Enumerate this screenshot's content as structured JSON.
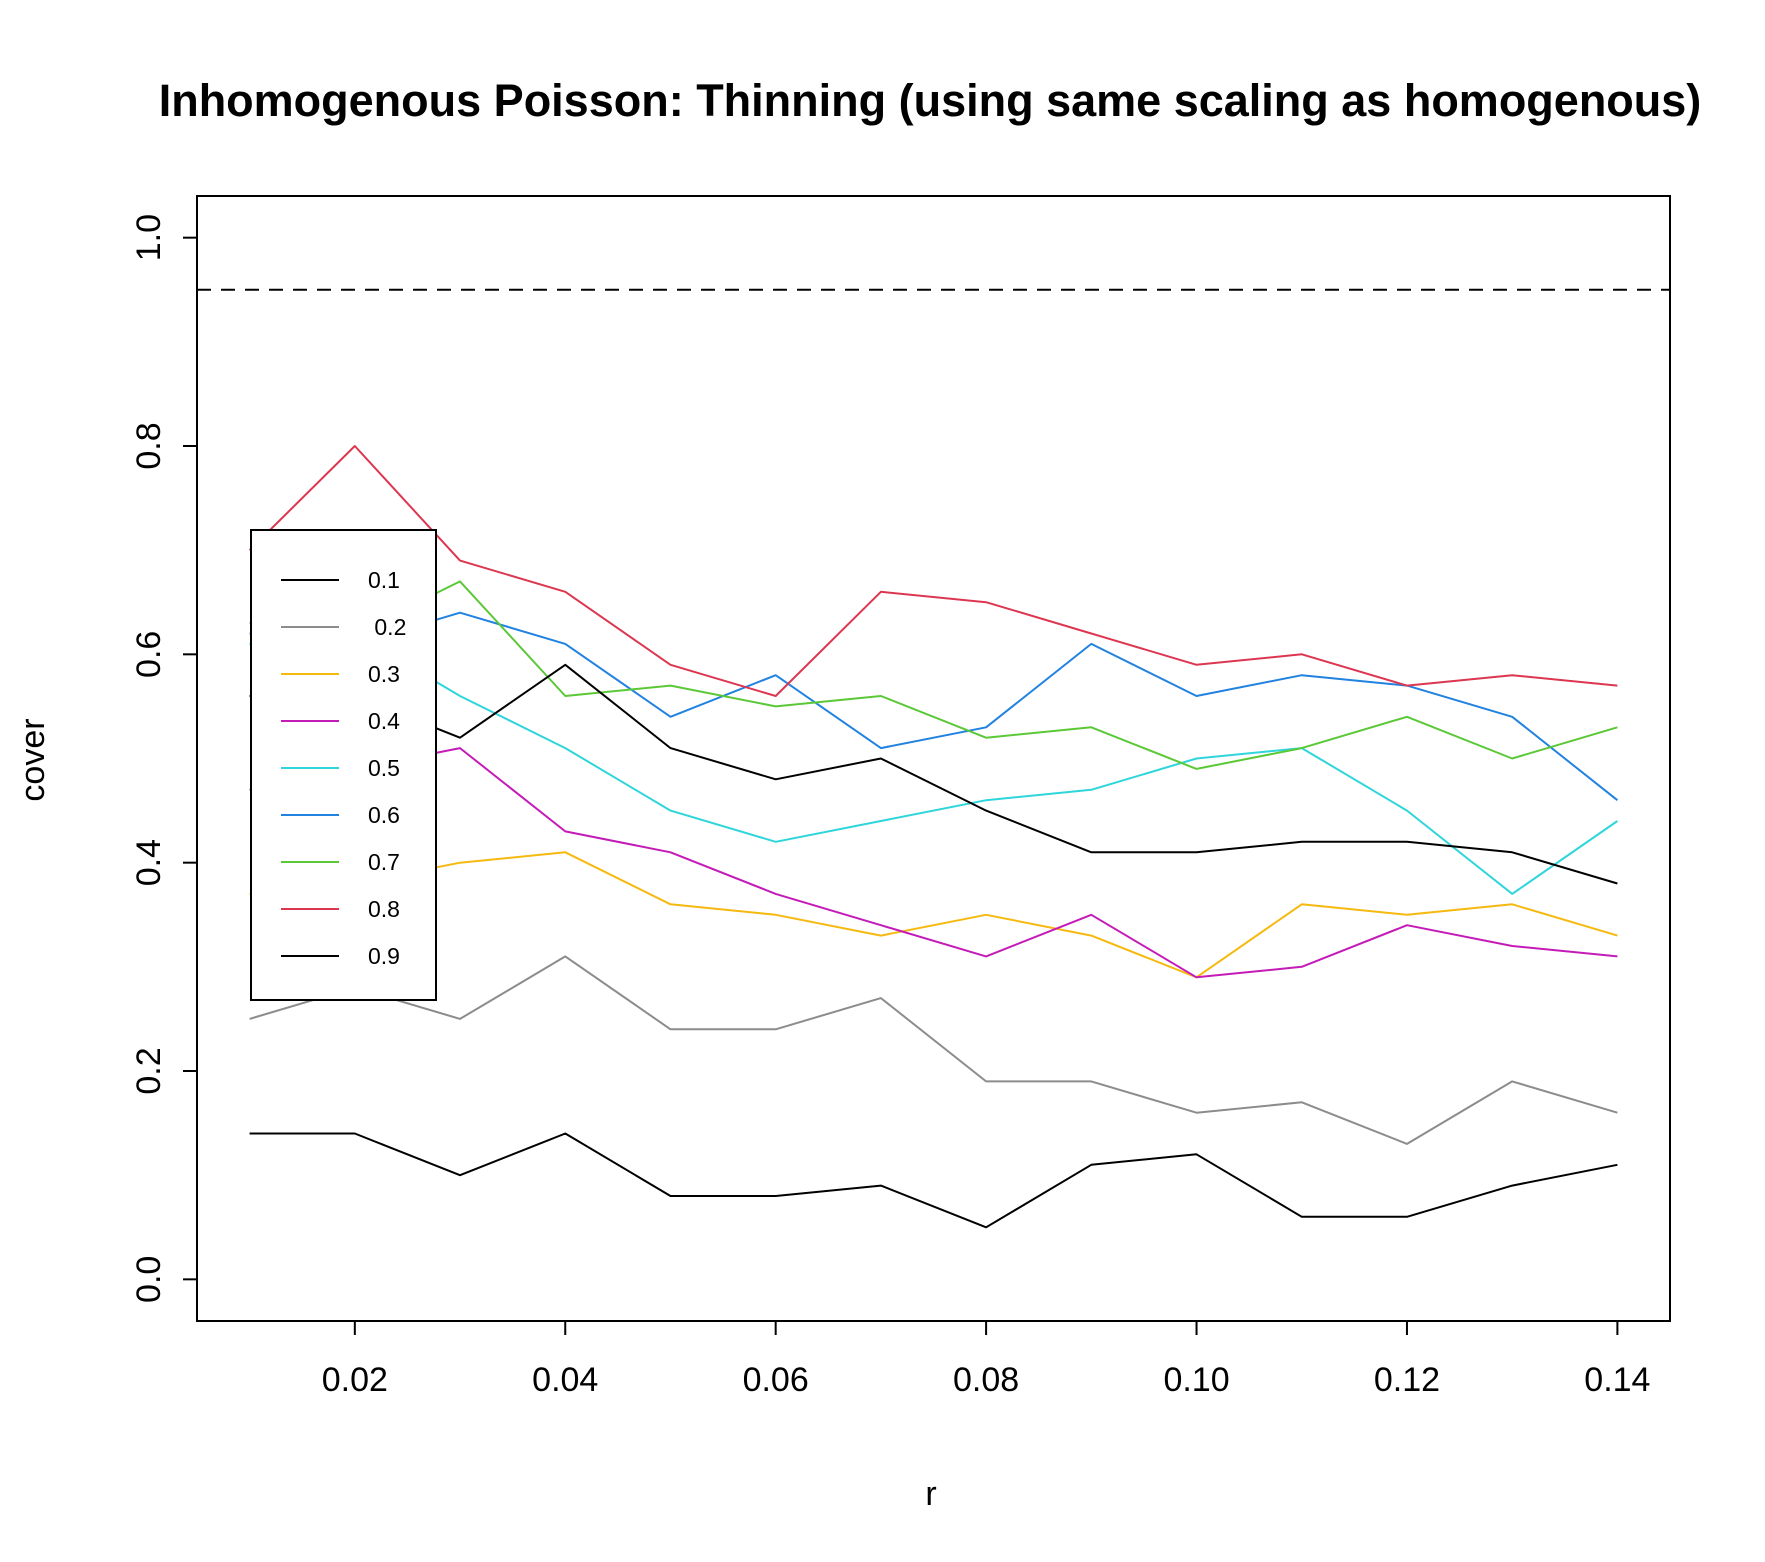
{
  "chart_data": {
    "type": "line",
    "title": "Inhomogenous Poisson: Thinning (using same scaling as homogenous)",
    "xlabel": "r",
    "ylabel": "cover",
    "x": [
      0.01,
      0.02,
      0.03,
      0.04,
      0.05,
      0.06,
      0.07,
      0.08,
      0.09,
      0.1,
      0.11,
      0.12,
      0.13,
      0.14
    ],
    "xlim": [
      0.005,
      0.145
    ],
    "ylim": [
      -0.04,
      1.04
    ],
    "xticks": [
      "0.02",
      "0.04",
      "0.06",
      "0.08",
      "0.10",
      "0.12",
      "0.14"
    ],
    "xtick_values": [
      0.02,
      0.04,
      0.06,
      0.08,
      0.1,
      0.12,
      0.14
    ],
    "yticks": [
      "0.0",
      "0.2",
      "0.4",
      "0.6",
      "0.8",
      "1.0"
    ],
    "ytick_values": [
      0.0,
      0.2,
      0.4,
      0.6,
      0.8,
      1.0
    ],
    "reference_line": {
      "y": 0.95,
      "style": "dashed",
      "color": "#000000"
    },
    "grid": false,
    "legend_position": "left",
    "series": [
      {
        "name": "0.1",
        "color": "#000000",
        "values": [
          0.14,
          0.14,
          0.1,
          0.14,
          0.08,
          0.08,
          0.09,
          0.05,
          0.11,
          0.12,
          0.06,
          0.06,
          0.09,
          0.11
        ]
      },
      {
        "name": " 0.2",
        "color": "#8C8C8C",
        "values": [
          0.25,
          0.28,
          0.25,
          0.31,
          0.24,
          0.24,
          0.27,
          0.19,
          0.19,
          0.16,
          0.17,
          0.13,
          0.19,
          0.16
        ]
      },
      {
        "name": "0.3",
        "color": "#F5B90F",
        "values": [
          0.37,
          0.38,
          0.4,
          0.41,
          0.36,
          0.35,
          0.33,
          0.35,
          0.33,
          0.29,
          0.36,
          0.35,
          0.36,
          0.33
        ]
      },
      {
        "name": "0.4",
        "color": "#C41BB8",
        "values": [
          0.47,
          0.49,
          0.51,
          0.43,
          0.41,
          0.37,
          0.34,
          0.31,
          0.35,
          0.29,
          0.3,
          0.34,
          0.32,
          0.31
        ]
      },
      {
        "name": "0.5",
        "color": "#2ED5DB",
        "values": [
          0.61,
          0.62,
          0.56,
          0.51,
          0.45,
          0.42,
          0.44,
          0.46,
          0.47,
          0.5,
          0.51,
          0.45,
          0.37,
          0.44
        ]
      },
      {
        "name": "0.6",
        "color": "#2182E0",
        "values": [
          0.62,
          0.61,
          0.64,
          0.61,
          0.54,
          0.58,
          0.51,
          0.53,
          0.61,
          0.56,
          0.58,
          0.57,
          0.54,
          0.46
        ]
      },
      {
        "name": "0.7",
        "color": "#5BC838",
        "values": [
          0.63,
          0.62,
          0.67,
          0.56,
          0.57,
          0.55,
          0.56,
          0.52,
          0.53,
          0.49,
          0.51,
          0.54,
          0.5,
          0.53
        ]
      },
      {
        "name": "0.8",
        "color": "#DD3650",
        "values": [
          0.7,
          0.8,
          0.69,
          0.66,
          0.59,
          0.56,
          0.66,
          0.65,
          0.62,
          0.59,
          0.6,
          0.57,
          0.58,
          0.57
        ]
      },
      {
        "name": "0.9",
        "color": "#000000",
        "values": [
          0.56,
          0.56,
          0.52,
          0.59,
          0.51,
          0.48,
          0.5,
          0.45,
          0.41,
          0.41,
          0.42,
          0.42,
          0.41,
          0.38
        ]
      }
    ]
  }
}
